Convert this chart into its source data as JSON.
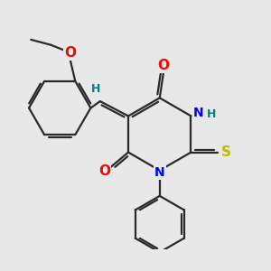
{
  "bg_color": "#e8e8e8",
  "bond_color": "#2a2a2a",
  "bond_width": 1.6,
  "atom_colors": {
    "O": "#ff0000",
    "N": "#0000ff",
    "S": "#bbbb00",
    "H": "#008080",
    "C": "#2a2a2a"
  },
  "font_size": 10,
  "figsize": [
    3.0,
    3.0
  ],
  "dpi": 100
}
